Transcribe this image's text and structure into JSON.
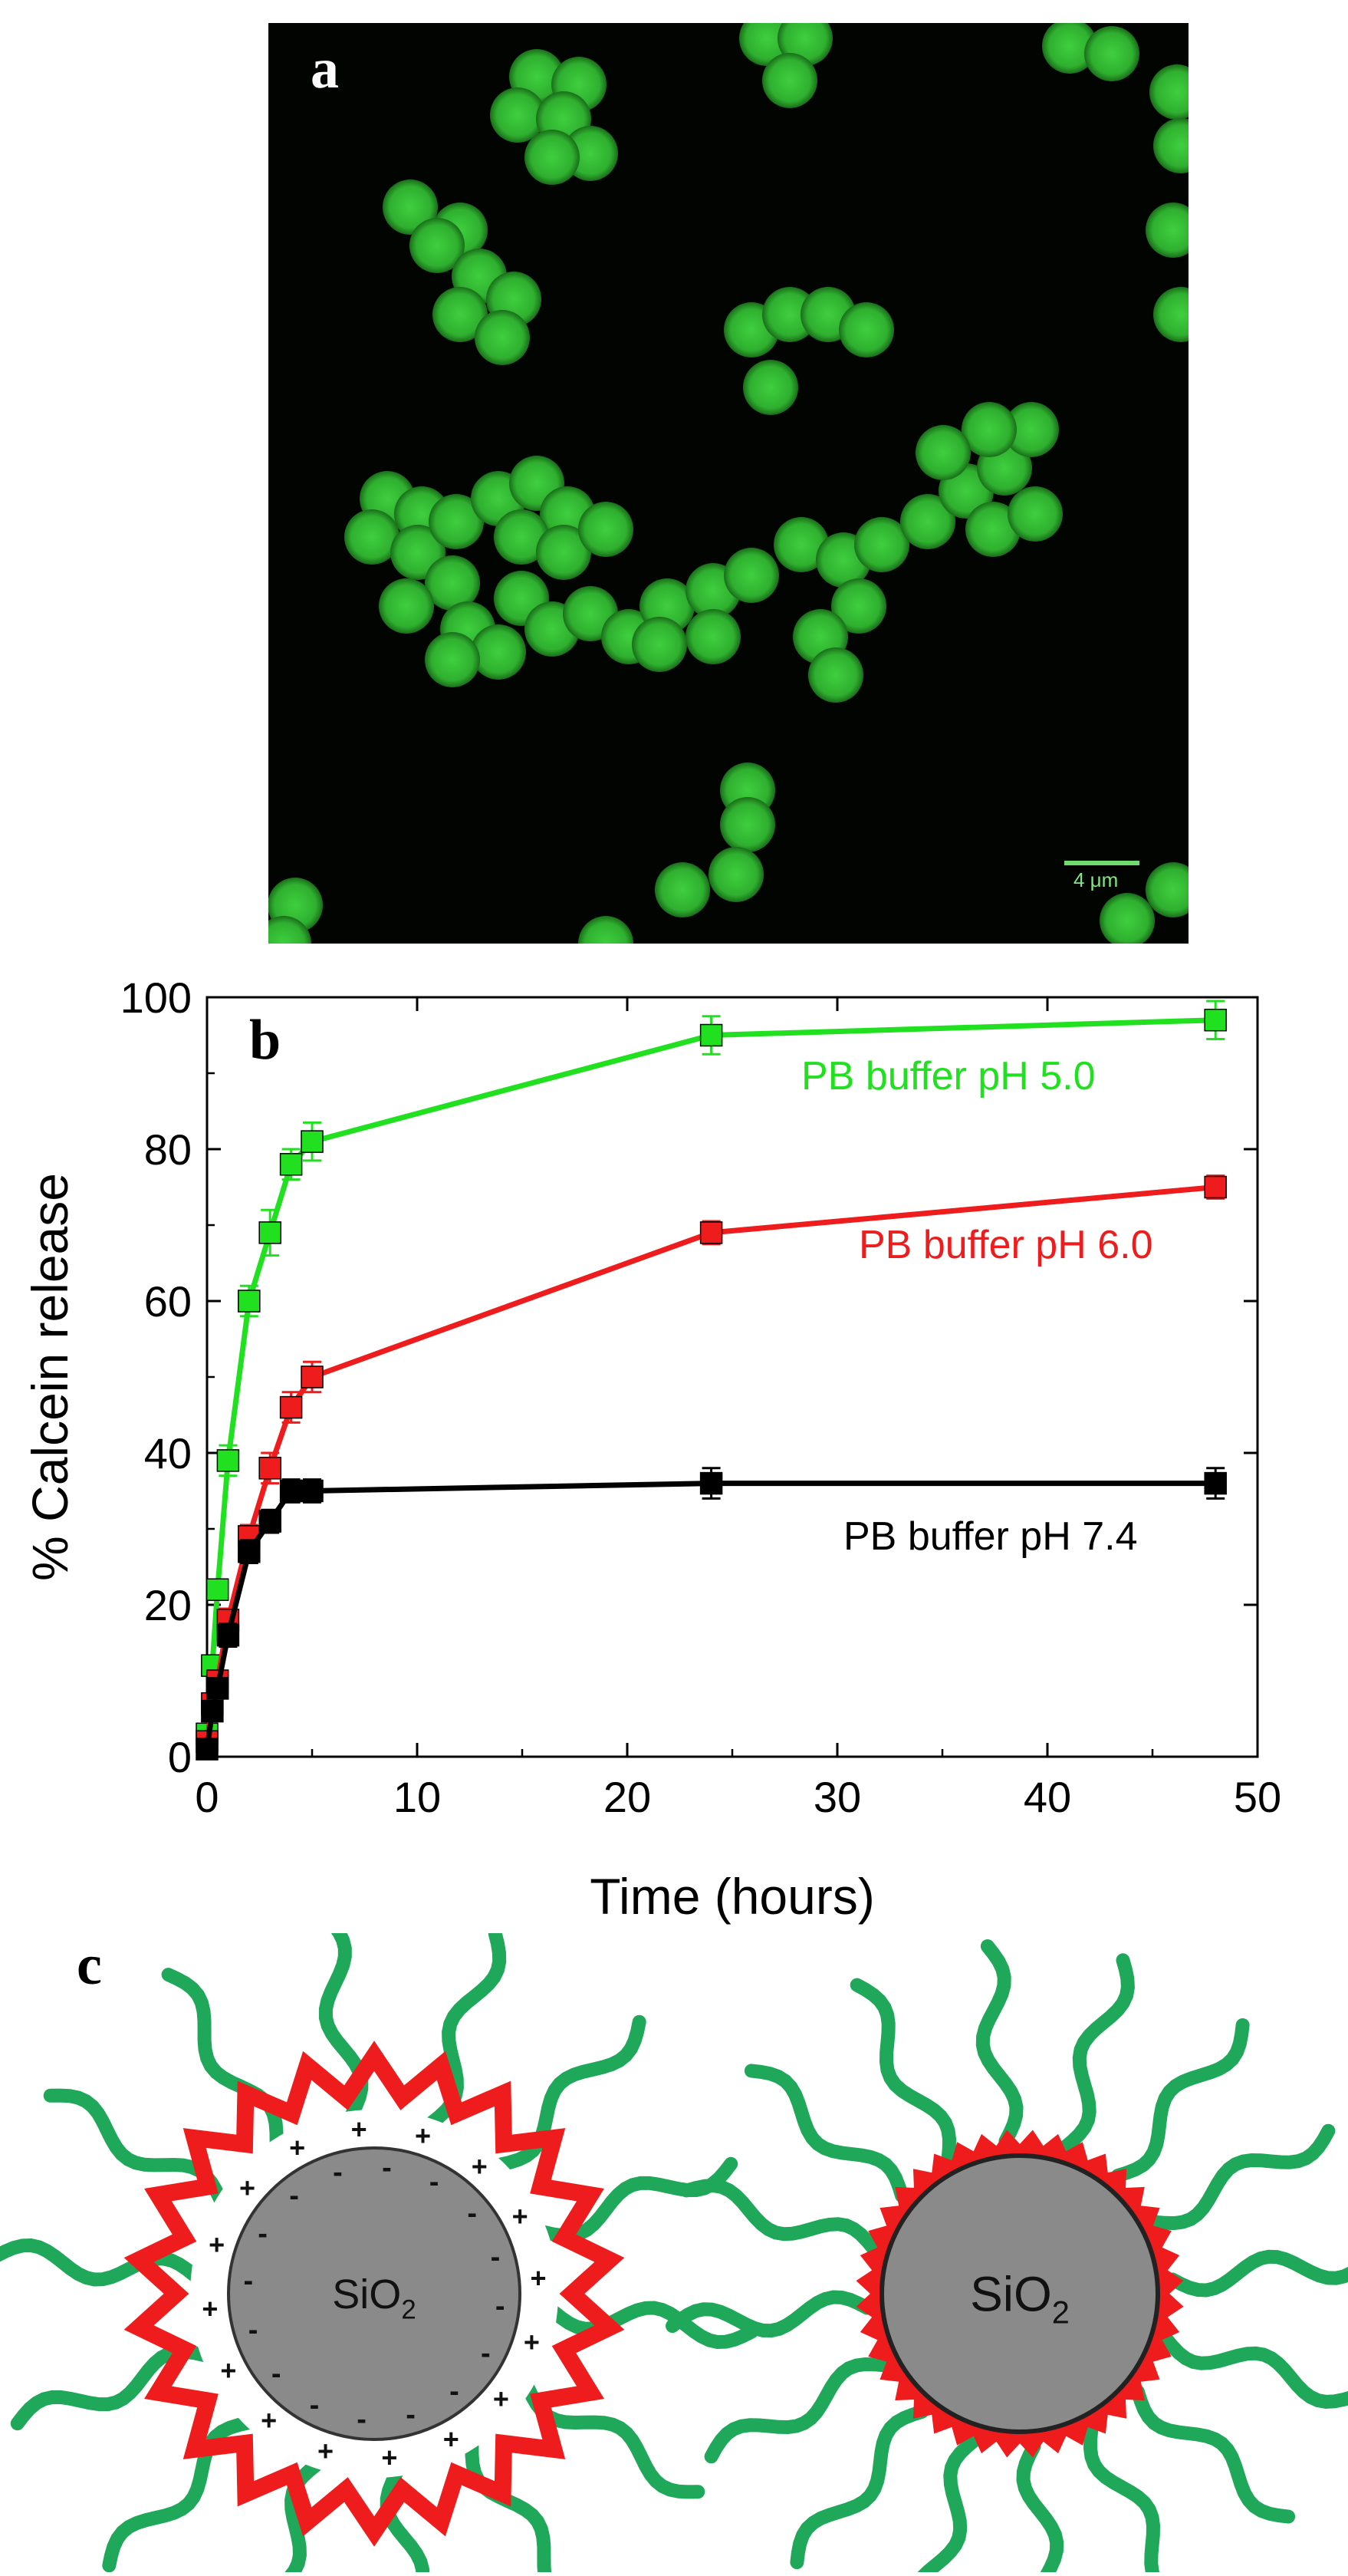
{
  "panel_a": {
    "letter": "a",
    "scale_label": "4 μm"
  },
  "chart_data": {
    "type": "line",
    "panel_letter": "b",
    "title": "",
    "xlabel": "Time (hours)",
    "ylabel": "% Calcein release",
    "xlim": [
      0,
      50
    ],
    "ylim": [
      0,
      100
    ],
    "xticks": [
      0,
      10,
      20,
      30,
      40,
      50
    ],
    "yticks": [
      0,
      20,
      40,
      60,
      80,
      100
    ],
    "grid": false,
    "series": [
      {
        "name": "PB buffer pH 5.0",
        "color": "#20e020",
        "x": [
          0,
          0.25,
          0.5,
          1,
          2,
          3,
          4,
          5,
          24,
          48
        ],
        "y": [
          3,
          12,
          22,
          39,
          60,
          69,
          78,
          81,
          95,
          97
        ],
        "err": [
          0,
          1,
          1,
          2,
          2,
          3,
          2,
          2.5,
          2.5,
          2.5
        ]
      },
      {
        "name": "PB buffer pH 6.0",
        "color": "#ee1c1c",
        "x": [
          0,
          0.25,
          0.5,
          1,
          2,
          3,
          4,
          5,
          24,
          48
        ],
        "y": [
          2,
          7,
          10,
          18,
          29,
          38,
          46,
          50,
          69,
          75
        ],
        "err": [
          0,
          1,
          1,
          1.5,
          1.5,
          2,
          2,
          2,
          1.5,
          1.5
        ]
      },
      {
        "name": "PB buffer pH 7.4",
        "color": "#000000",
        "x": [
          0,
          0.25,
          0.5,
          1,
          2,
          3,
          4,
          5,
          24,
          48
        ],
        "y": [
          1,
          6,
          9,
          16,
          27,
          31,
          35,
          35,
          36,
          36
        ],
        "err": [
          0,
          1,
          1,
          1.5,
          1.5,
          1.5,
          1.5,
          1.5,
          2,
          2
        ]
      }
    ]
  },
  "panel_c": {
    "letter": "c",
    "left_particle": {
      "core_label": "SiO",
      "core_subscript": "2",
      "inner_ring_charges": "-",
      "outer_ring_charges": "+"
    },
    "right_particle": {
      "core_label": "SiO",
      "core_subscript": "2"
    },
    "colors": {
      "core": "#8a8a8a",
      "polymer_shell": "#ee1c1c",
      "peg_chains": "#1fa85a"
    }
  }
}
